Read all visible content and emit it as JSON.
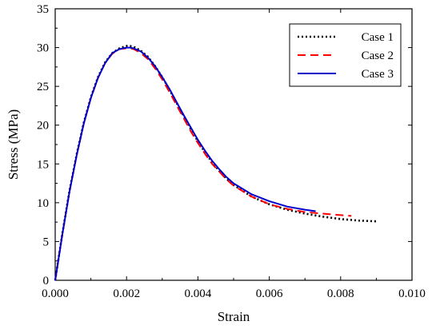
{
  "chart_data": {
    "type": "line",
    "title": "",
    "xlabel": "Strain",
    "ylabel": "Stress (MPa)",
    "xlim": [
      0.0,
      0.01
    ],
    "ylim": [
      0,
      35
    ],
    "xticks": [
      0.0,
      0.002,
      0.004,
      0.006,
      0.008,
      0.01
    ],
    "xtick_labels": [
      "0.000",
      "0.002",
      "0.004",
      "0.006",
      "0.008",
      "0.010"
    ],
    "yticks": [
      0,
      5,
      10,
      15,
      20,
      25,
      30,
      35
    ],
    "ytick_labels": [
      "0",
      "5",
      "10",
      "15",
      "20",
      "25",
      "30",
      "35"
    ],
    "grid": false,
    "legend_position": "top-right",
    "series": [
      {
        "name": "Case 1",
        "color": "#000000",
        "style": "dotted",
        "x": [
          0.0,
          0.0002,
          0.0004,
          0.0006,
          0.0008,
          0.001,
          0.0012,
          0.0014,
          0.0016,
          0.0018,
          0.002,
          0.0021,
          0.0022,
          0.0024,
          0.0026,
          0.0028,
          0.003,
          0.0032,
          0.0034,
          0.0036,
          0.0038,
          0.004,
          0.0042,
          0.0044,
          0.0046,
          0.0048,
          0.005,
          0.0055,
          0.006,
          0.0065,
          0.007,
          0.0075,
          0.008,
          0.0085,
          0.009
        ],
        "y": [
          0,
          6.0,
          11.5,
          16.2,
          20.3,
          23.6,
          26.2,
          28.1,
          29.3,
          29.9,
          30.2,
          30.2,
          30.1,
          29.6,
          28.8,
          27.6,
          26.2,
          24.6,
          22.9,
          21.2,
          19.5,
          17.9,
          16.5,
          15.2,
          14.1,
          13.1,
          12.3,
          10.8,
          9.8,
          9.1,
          8.6,
          8.2,
          7.9,
          7.7,
          7.6
        ]
      },
      {
        "name": "Case 2",
        "color": "#ff0000",
        "style": "dashed",
        "x": [
          0.0,
          0.0002,
          0.0004,
          0.0006,
          0.0008,
          0.001,
          0.0012,
          0.0014,
          0.0016,
          0.0018,
          0.002,
          0.0021,
          0.0022,
          0.0024,
          0.0026,
          0.0028,
          0.003,
          0.0032,
          0.0034,
          0.0036,
          0.0038,
          0.004,
          0.0042,
          0.0044,
          0.0046,
          0.0048,
          0.005,
          0.0055,
          0.006,
          0.0065,
          0.007,
          0.0075,
          0.008,
          0.0083
        ],
        "y": [
          0,
          5.9,
          11.4,
          16.1,
          20.2,
          23.5,
          26.1,
          28.0,
          29.2,
          29.8,
          29.9,
          29.9,
          29.8,
          29.3,
          28.5,
          27.3,
          25.9,
          24.3,
          22.6,
          20.9,
          19.2,
          17.7,
          16.3,
          15.0,
          14.0,
          13.0,
          12.2,
          10.8,
          9.8,
          9.2,
          8.8,
          8.6,
          8.4,
          8.3
        ]
      },
      {
        "name": "Case 3",
        "color": "#0000cc",
        "style": "solid",
        "x": [
          0.0,
          0.0002,
          0.0004,
          0.0006,
          0.0008,
          0.001,
          0.0012,
          0.0014,
          0.0016,
          0.0018,
          0.002,
          0.0021,
          0.0022,
          0.0024,
          0.0026,
          0.0028,
          0.003,
          0.0032,
          0.0034,
          0.0036,
          0.0038,
          0.004,
          0.0042,
          0.0044,
          0.0046,
          0.0048,
          0.005,
          0.0055,
          0.006,
          0.0065,
          0.007,
          0.0073
        ],
        "y": [
          0,
          5.9,
          11.4,
          16.1,
          20.2,
          23.5,
          26.1,
          28.0,
          29.3,
          29.8,
          30.0,
          30.0,
          29.9,
          29.5,
          28.7,
          27.6,
          26.2,
          24.7,
          23.0,
          21.3,
          19.7,
          18.1,
          16.7,
          15.4,
          14.3,
          13.3,
          12.5,
          11.1,
          10.2,
          9.5,
          9.1,
          8.9
        ]
      }
    ]
  }
}
